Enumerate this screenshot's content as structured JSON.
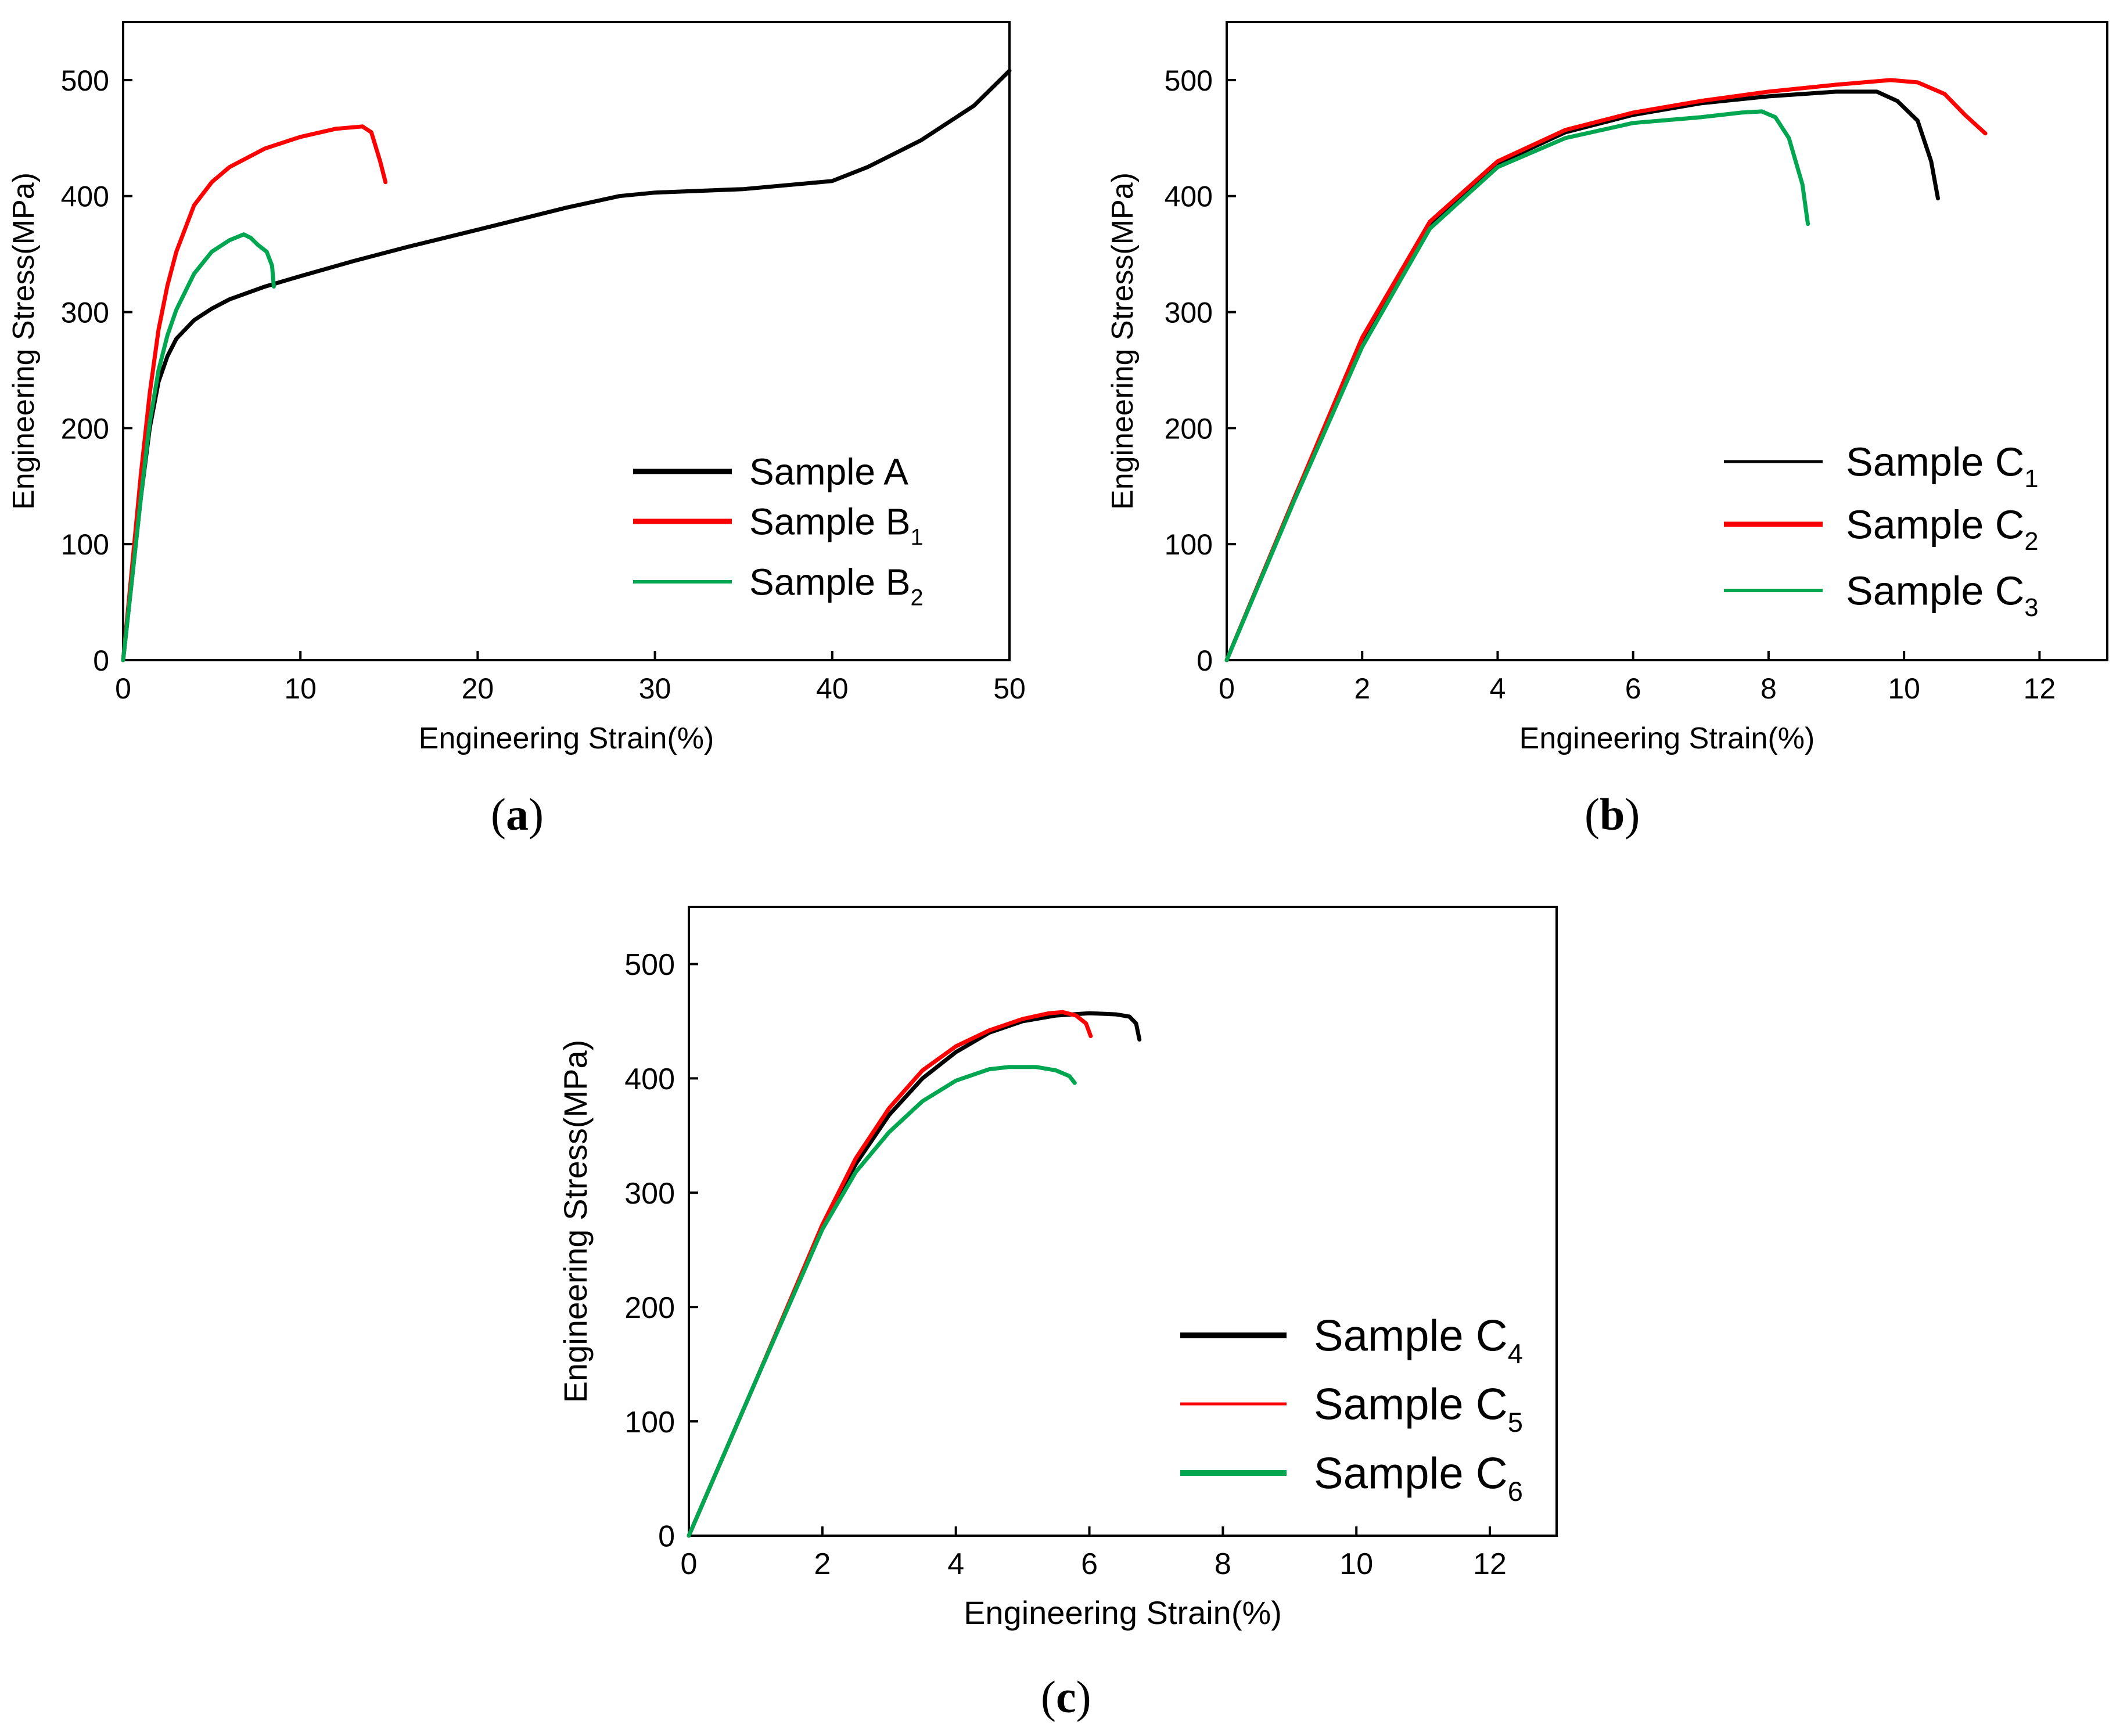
{
  "chart_data": [
    {
      "type": "line",
      "panel_label": "a",
      "xlabel": "Engineering Strain(%)",
      "ylabel": "Engineering Stress(MPa)",
      "xlim": [
        0,
        50
      ],
      "ylim": [
        0,
        550
      ],
      "xticks": [
        "0",
        "10",
        "20",
        "30",
        "40",
        "50"
      ],
      "yticks": [
        "0",
        "100",
        "200",
        "300",
        "400",
        "500"
      ],
      "legend_position": "bottom-right",
      "series": [
        {
          "name": "Sample A",
          "sub": "",
          "color": "#000000",
          "x": [
            0,
            0.5,
            1,
            1.5,
            2,
            2.5,
            3,
            4,
            5,
            6,
            8,
            10,
            13,
            16,
            20,
            25,
            28,
            30,
            35,
            40,
            42,
            45,
            48,
            50
          ],
          "y": [
            0,
            70,
            140,
            200,
            240,
            262,
            277,
            293,
            303,
            311,
            322,
            331,
            344,
            356,
            371,
            390,
            400,
            403,
            406,
            413,
            425,
            448,
            478,
            508
          ]
        },
        {
          "name": "Sample B",
          "sub": "1",
          "color": "#ff0000",
          "x": [
            0,
            0.5,
            1,
            1.5,
            2,
            2.5,
            3,
            4,
            5,
            6,
            8,
            10,
            12,
            13.5,
            14,
            14.5,
            14.8
          ],
          "y": [
            0,
            80,
            160,
            230,
            285,
            323,
            352,
            392,
            412,
            425,
            441,
            451,
            458,
            460,
            455,
            430,
            412
          ]
        },
        {
          "name": "Sample B",
          "sub": "2",
          "color": "#00a650",
          "x": [
            0,
            0.5,
            1,
            1.5,
            2,
            2.5,
            3,
            4,
            5,
            6,
            6.8,
            7.2,
            7.6,
            8.1,
            8.4,
            8.5
          ],
          "y": [
            0,
            70,
            140,
            205,
            250,
            280,
            302,
            333,
            352,
            362,
            367,
            364,
            358,
            352,
            340,
            322
          ]
        }
      ]
    },
    {
      "type": "line",
      "panel_label": "b",
      "xlabel": "Engineering Strain(%)",
      "ylabel": "Engineering Stress(MPa)",
      "xlim": [
        0,
        13
      ],
      "ylim": [
        0,
        550
      ],
      "xticks": [
        "0",
        "2",
        "4",
        "6",
        "8",
        "10",
        "12"
      ],
      "yticks": [
        "0",
        "100",
        "200",
        "300",
        "400",
        "500"
      ],
      "legend_position": "bottom-right",
      "series": [
        {
          "name": "Sample C",
          "sub": "1",
          "color": "#000000",
          "x": [
            0,
            1,
            2,
            3,
            4,
            5,
            6,
            7,
            8,
            9,
            9.6,
            9.9,
            10.2,
            10.4,
            10.5
          ],
          "y": [
            0,
            140,
            275,
            375,
            428,
            455,
            470,
            480,
            486,
            490,
            490,
            482,
            465,
            430,
            398
          ]
        },
        {
          "name": "Sample C",
          "sub": "2",
          "color": "#ff0000",
          "x": [
            0,
            1,
            2,
            3,
            4,
            5,
            6,
            7,
            8,
            9,
            9.8,
            10.2,
            10.6,
            10.9,
            11.2
          ],
          "y": [
            0,
            140,
            278,
            378,
            430,
            457,
            472,
            482,
            490,
            496,
            500,
            498,
            488,
            470,
            454
          ]
        },
        {
          "name": "Sample C",
          "sub": "3",
          "color": "#00a650",
          "x": [
            0,
            1,
            2,
            3,
            4,
            5,
            6,
            7,
            7.6,
            7.9,
            8.1,
            8.3,
            8.5,
            8.58
          ],
          "y": [
            0,
            138,
            270,
            372,
            425,
            450,
            463,
            468,
            472,
            473,
            468,
            450,
            410,
            376
          ]
        }
      ]
    },
    {
      "type": "line",
      "panel_label": "c",
      "xlabel": "Engineering Strain(%)",
      "ylabel": "Engineering Stress(MPa)",
      "xlim": [
        0,
        13
      ],
      "ylim": [
        0,
        550
      ],
      "xticks": [
        "0",
        "2",
        "4",
        "6",
        "8",
        "10",
        "12"
      ],
      "yticks": [
        "0",
        "100",
        "200",
        "300",
        "400",
        "500"
      ],
      "legend_position": "bottom-right",
      "series": [
        {
          "name": "Sample C",
          "sub": "4",
          "color": "#000000",
          "x": [
            0,
            1,
            2,
            2.5,
            3,
            3.5,
            4,
            4.5,
            5,
            5.5,
            6,
            6.4,
            6.6,
            6.7,
            6.75
          ],
          "y": [
            0,
            135,
            270,
            325,
            368,
            400,
            423,
            440,
            450,
            455,
            457,
            456,
            454,
            448,
            434
          ]
        },
        {
          "name": "Sample C",
          "sub": "5",
          "color": "#ff0000",
          "x": [
            0,
            1,
            2,
            2.5,
            3,
            3.5,
            4,
            4.5,
            5,
            5.4,
            5.6,
            5.8,
            5.95,
            6.02
          ],
          "y": [
            0,
            135,
            272,
            330,
            374,
            407,
            428,
            442,
            452,
            457,
            458,
            455,
            448,
            437
          ]
        },
        {
          "name": "Sample C",
          "sub": "6",
          "color": "#00a650",
          "x": [
            0,
            1,
            2,
            2.5,
            3,
            3.5,
            4,
            4.5,
            4.8,
            5.2,
            5.5,
            5.7,
            5.78
          ],
          "y": [
            0,
            135,
            268,
            318,
            353,
            380,
            398,
            408,
            410,
            410,
            407,
            402,
            396
          ]
        }
      ]
    }
  ]
}
